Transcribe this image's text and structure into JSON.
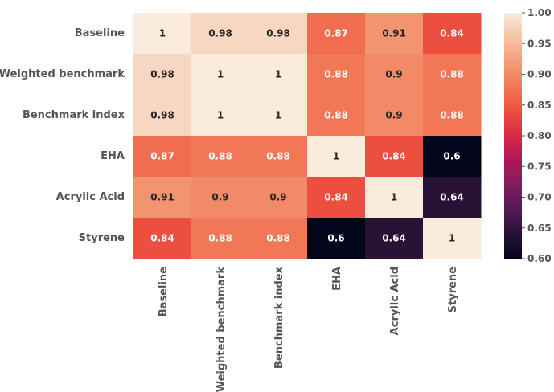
{
  "chart_data": {
    "type": "heatmap",
    "title": "",
    "xlabel": "",
    "ylabel": "",
    "rows": [
      "Baseline",
      "Weighted benchmark",
      "Benchmark index",
      "EHA",
      "Acrylic Acid",
      "Styrene"
    ],
    "columns": [
      "Baseline",
      "Weighted benchmark",
      "Benchmark index",
      "EHA",
      "Acrylic Acid",
      "Styrene"
    ],
    "values": [
      [
        1.0,
        0.98,
        0.98,
        0.87,
        0.91,
        0.84
      ],
      [
        0.98,
        1.0,
        1.0,
        0.88,
        0.9,
        0.88
      ],
      [
        0.98,
        1.0,
        1.0,
        0.88,
        0.9,
        0.88
      ],
      [
        0.87,
        0.88,
        0.88,
        1.0,
        0.84,
        0.6
      ],
      [
        0.91,
        0.9,
        0.9,
        0.84,
        1.0,
        0.64
      ],
      [
        0.84,
        0.88,
        0.88,
        0.6,
        0.64,
        1.0
      ]
    ],
    "annotations": [
      [
        "1",
        "0.98",
        "0.98",
        "0.87",
        "0.91",
        "0.84"
      ],
      [
        "0.98",
        "1",
        "1",
        "0.88",
        "0.9",
        "0.88"
      ],
      [
        "0.98",
        "1",
        "1",
        "0.88",
        "0.9",
        "0.88"
      ],
      [
        "0.87",
        "0.88",
        "0.88",
        "1",
        "0.84",
        "0.6"
      ],
      [
        "0.91",
        "0.9",
        "0.9",
        "0.84",
        "1",
        "0.64"
      ],
      [
        "0.84",
        "0.88",
        "0.88",
        "0.6",
        "0.64",
        "1"
      ]
    ],
    "colorbar": {
      "vmin": 0.6,
      "vmax": 1.0,
      "ticks": [
        0.6,
        0.65,
        0.7,
        0.75,
        0.8,
        0.85,
        0.9,
        0.95,
        1.0
      ],
      "tick_labels": [
        "0.60",
        "0.65",
        "0.70",
        "0.75",
        "0.80",
        "0.85",
        "0.90",
        "0.95",
        "1.00"
      ],
      "colormap": "rocket"
    }
  }
}
